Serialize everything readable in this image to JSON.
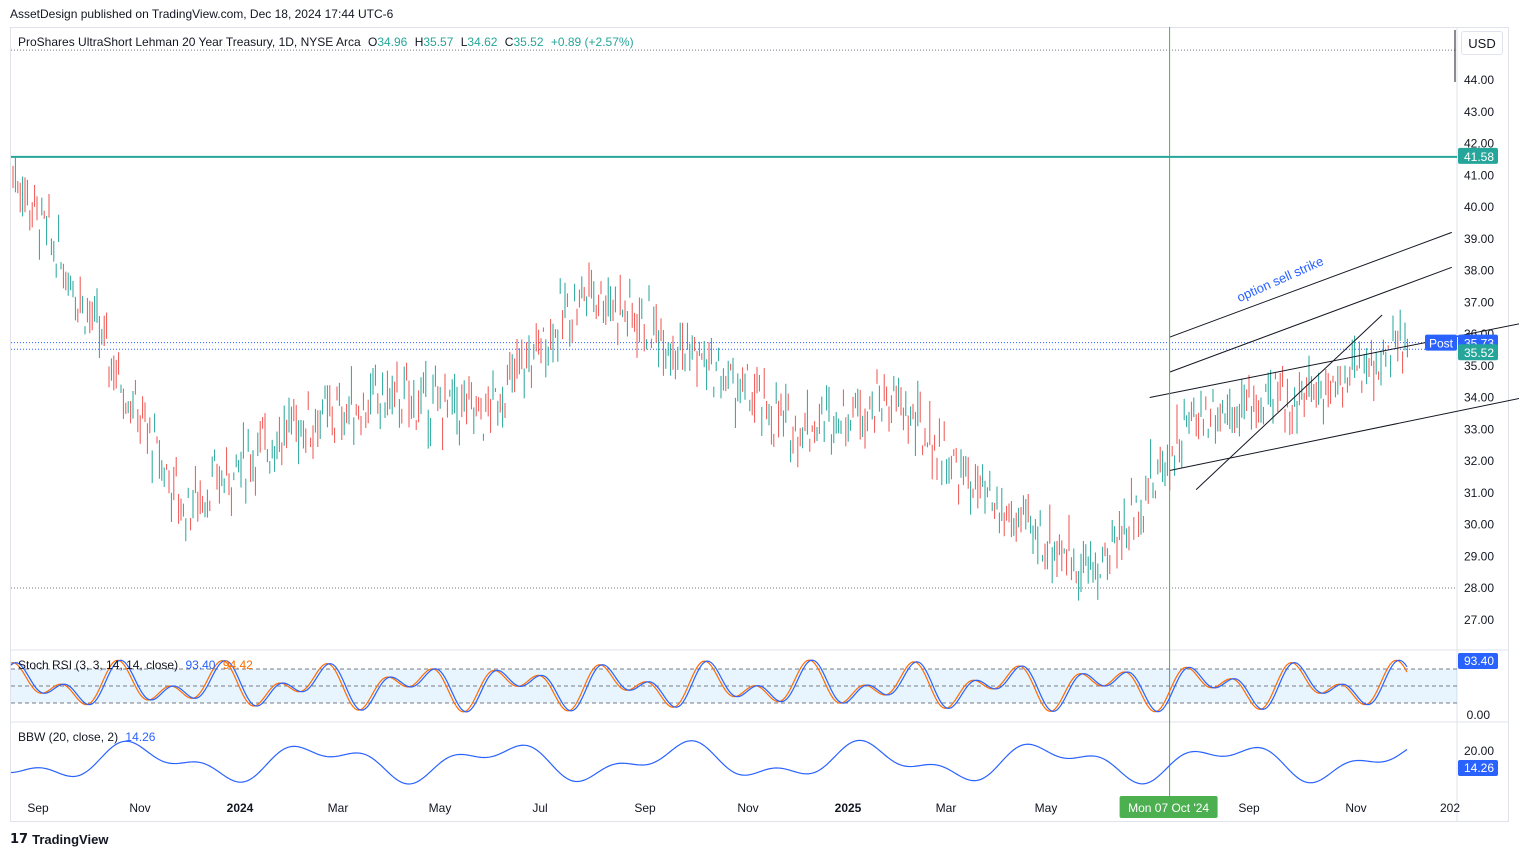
{
  "header": {
    "published": "AssetDesign published on TradingView.com, Dec 18, 2024 17:44 UTC-6"
  },
  "legend": {
    "name": "ProShares UltraShort Lehman 20 Year Treasury, 1D, NYSE Arca",
    "o_label": "O",
    "o": "34.96",
    "h_label": "H",
    "h": "35.57",
    "l_label": "L",
    "l": "34.62",
    "c_label": "C",
    "c": "35.52",
    "chg": "+0.89 (+2.57%)"
  },
  "currency_button": "USD",
  "annotation": "option sell strike",
  "price_tags": {
    "post_label": "Post",
    "post_value": "35.73",
    "last_value": "35.52",
    "hline_value": "41.58"
  },
  "stoch": {
    "label": "Stoch RSI",
    "params": "3, 3, 14, 14, close",
    "k": "93.40",
    "d": "94.42",
    "tag": "93.40",
    "axis_label": "0.00"
  },
  "bbw": {
    "label": "BBW",
    "params": "20, close, 2",
    "value": "14.26",
    "tag": "14.26",
    "axis_label": "20.00"
  },
  "crosshair_label": "Mon 07 Oct '24",
  "footer": {
    "brand": "TradingView"
  },
  "colors": {
    "up": "#26a69a",
    "down": "#ef5350",
    "accent": "#2962ff",
    "hline": "#26a69a",
    "stoch_k": "#2962ff",
    "stoch_d": "#ff6d00",
    "crosshair": "#4caf50"
  },
  "chart_data": {
    "type": "ohlc",
    "y_ticks": [
      "44.00",
      "43.00",
      "42.00",
      "41.00",
      "40.00",
      "39.00",
      "38.00",
      "37.00",
      "36.00",
      "35.00",
      "34.00",
      "33.00",
      "32.00",
      "31.00",
      "30.00",
      "29.00",
      "28.00",
      "27.00"
    ],
    "x_ticks": [
      "Sep",
      "Nov",
      "2024",
      "Mar",
      "May",
      "Jul",
      "Sep",
      "Nov",
      "2025",
      "Mar",
      "May",
      "Jul",
      "Sep",
      "Nov",
      "202"
    ],
    "ylim": [
      26.0,
      45.0
    ],
    "horizontal_line": 41.58,
    "price_levels": [
      35.73,
      35.52,
      28.0,
      44.94
    ],
    "closes_by_month": [
      {
        "month": "2023-08",
        "close": 34.0
      },
      {
        "month": "2023-09",
        "close": 36.5
      },
      {
        "month": "2023-10",
        "close": 43.0
      },
      {
        "month": "2023-11",
        "close": 37.0
      },
      {
        "month": "2023-12",
        "close": 30.5
      },
      {
        "month": "2024-01",
        "close": 33.0
      },
      {
        "month": "2024-02",
        "close": 34.0
      },
      {
        "month": "2024-03",
        "close": 33.5
      },
      {
        "month": "2024-04",
        "close": 37.5
      },
      {
        "month": "2024-05",
        "close": 35.5
      },
      {
        "month": "2024-06",
        "close": 33.0
      },
      {
        "month": "2024-07",
        "close": 34.0
      },
      {
        "month": "2024-08",
        "close": 30.5
      },
      {
        "month": "2024-09",
        "close": 28.5
      },
      {
        "month": "2024-10",
        "close": 33.5
      },
      {
        "month": "2024-11",
        "close": 34.0
      },
      {
        "month": "2024-12",
        "close": 35.52
      }
    ],
    "trend_lines": [
      {
        "name": "upper channel",
        "points": [
          [
            "2024-10-07",
            35.9
          ],
          [
            "2024-12-31",
            39.2
          ]
        ]
      },
      {
        "name": "mid channel",
        "points": [
          [
            "2024-10-07",
            34.8
          ],
          [
            "2024-12-31",
            38.1
          ]
        ]
      },
      {
        "name": "lower channel",
        "points": [
          [
            "2024-10-01",
            34.0
          ],
          [
            "2025-12-31",
            43.5
          ]
        ]
      },
      {
        "name": "base channel",
        "points": [
          [
            "2024-10-07",
            31.7
          ],
          [
            "2025-12-31",
            41.4
          ]
        ]
      },
      {
        "name": "steep rising line",
        "points": [
          [
            "2024-10-15",
            31.1
          ],
          [
            "2024-12-10",
            36.6
          ]
        ]
      }
    ],
    "stoch_rsi": {
      "k": 93.4,
      "d": 94.42,
      "levels": [
        80,
        50,
        20
      ]
    },
    "bbw": {
      "value": 14.26
    }
  }
}
